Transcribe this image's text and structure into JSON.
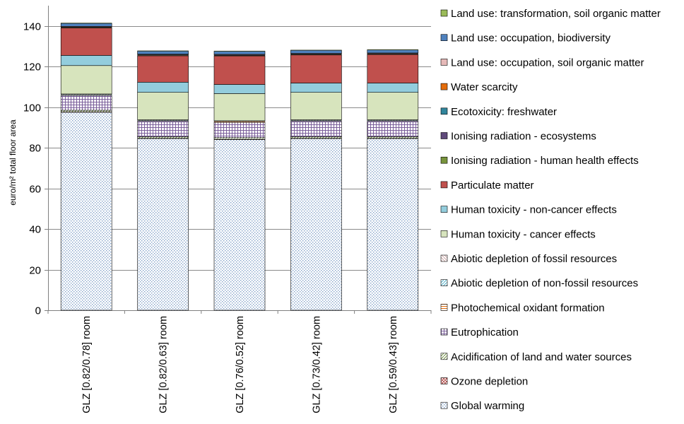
{
  "chart_data": {
    "type": "bar",
    "stacked": true,
    "ylabel": "euro/m² total floor area",
    "ylim": [
      0,
      150
    ],
    "yticks": [
      0,
      20,
      40,
      60,
      80,
      100,
      120,
      140
    ],
    "grid": true,
    "legend_position": "right",
    "categories": [
      "GLZ [0.82/0.78] room",
      "GLZ [0.82/0.63] room",
      "GLZ [0.76/0.52] room",
      "GLZ [0.73/0.42] room",
      "GLZ [0.59/0.43] room"
    ],
    "series": [
      {
        "name": "Global warming",
        "color": "#8EB4E3",
        "values": [
          97.5,
          84.5,
          84,
          84.5,
          84.5
        ]
      },
      {
        "name": "Ozone depletion",
        "color": "#C0504D",
        "values": [
          0.2,
          0.2,
          0.2,
          0.2,
          0.2
        ]
      },
      {
        "name": "Acidification of land and water sources",
        "color": "#9BBB59",
        "values": [
          0.8,
          0.8,
          0.8,
          0.8,
          0.8
        ]
      },
      {
        "name": "Eutrophication",
        "color": "#8064A2",
        "values": [
          7.2,
          7.5,
          7.5,
          7.5,
          7.5
        ]
      },
      {
        "name": "Photochemical oxidant formation",
        "color": "#F79646",
        "values": [
          0.3,
          0.3,
          0.3,
          0.3,
          0.3
        ]
      },
      {
        "name": "Abiotic depletion of non-fossil resources",
        "color": "#4BACC6",
        "values": [
          0.3,
          0.3,
          0.3,
          0.3,
          0.3
        ]
      },
      {
        "name": "Abiotic depletion of fossil resources",
        "color": "#F2DCDB",
        "values": [
          0.2,
          0.2,
          0.2,
          0.2,
          0.2
        ]
      },
      {
        "name": "Human toxicity - cancer effects",
        "color": "#D7E4BD",
        "values": [
          14,
          13.5,
          13.4,
          13.5,
          13.5
        ]
      },
      {
        "name": "Human toxicity - non-cancer effects",
        "color": "#93CDDD",
        "values": [
          5,
          5,
          4.5,
          4.6,
          4.6
        ]
      },
      {
        "name": "Particulate matter",
        "color": "#C0504D",
        "values": [
          13.5,
          13,
          14,
          13.8,
          14
        ]
      },
      {
        "name": "Ionising radiation - human health effects",
        "color": "#77933C",
        "values": [
          0.2,
          0.2,
          0.2,
          0.2,
          0.2
        ]
      },
      {
        "name": "Ionising radiation - ecosystems",
        "color": "#604A7B",
        "values": [
          0.2,
          0.2,
          0.2,
          0.2,
          0.2
        ]
      },
      {
        "name": "Ecotoxicity: freshwater",
        "color": "#31859C",
        "values": [
          0.2,
          0.2,
          0.2,
          0.2,
          0.2
        ]
      },
      {
        "name": "Water scarcity",
        "color": "#E46C0A",
        "values": [
          0.1,
          0.1,
          0.1,
          0.1,
          0.1
        ]
      },
      {
        "name": "Land use: occupation, soil organic matter",
        "color": "#E6B9B8",
        "values": [
          0.1,
          0.1,
          0.1,
          0.1,
          0.1
        ]
      },
      {
        "name": "Land use: occupation, biodiversity",
        "color": "#4F81BD",
        "values": [
          1.5,
          1.5,
          1.5,
          1.5,
          1.5
        ]
      },
      {
        "name": "Land use: transformation, soil organic matter",
        "color": "#9BBB59",
        "values": [
          0.2,
          0.2,
          0.2,
          0.2,
          0.2
        ]
      }
    ]
  }
}
